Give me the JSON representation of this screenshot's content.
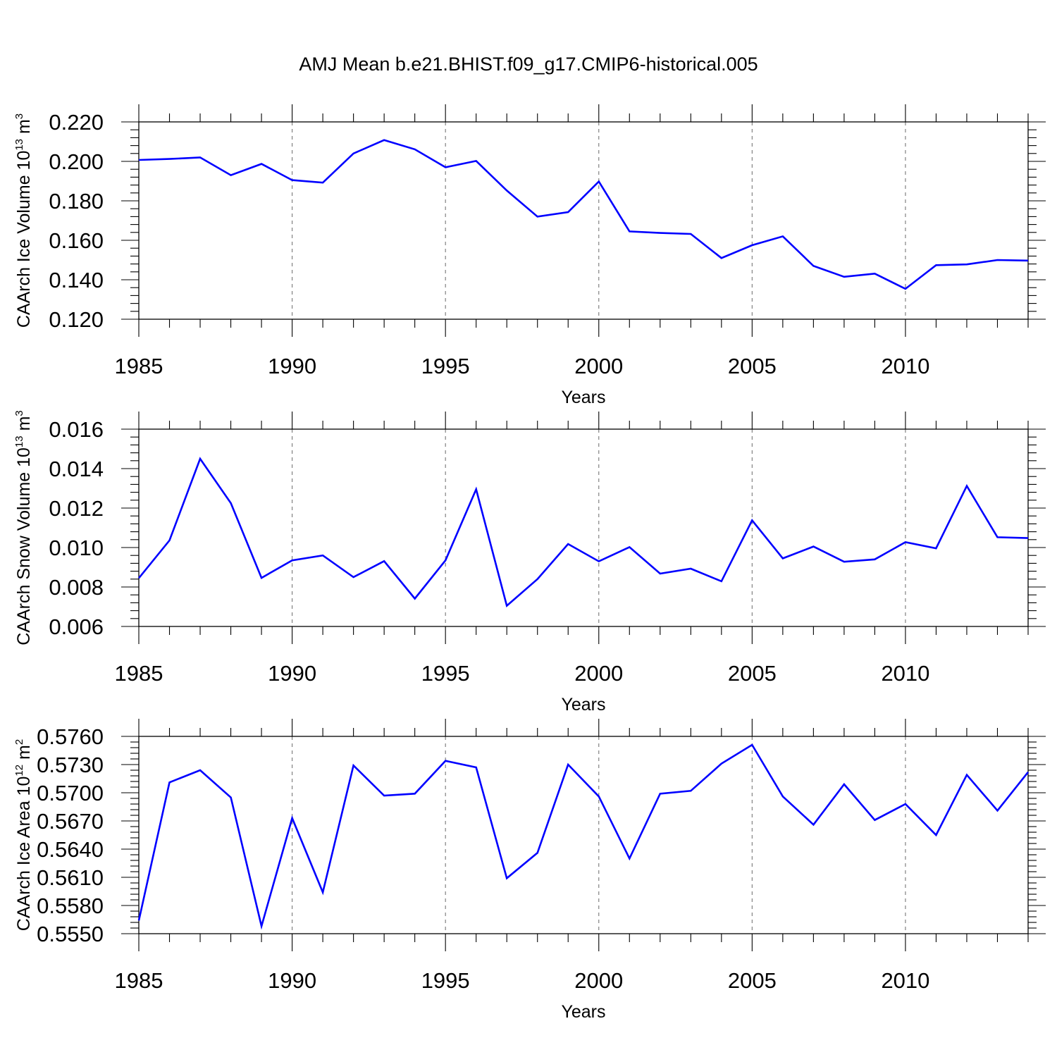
{
  "title": "AMJ Mean b.e21.BHIST.f09_g17.CMIP6-historical.005",
  "chart_data": [
    {
      "type": "line",
      "name": "ice-volume",
      "x": [
        1985,
        1986,
        1987,
        1988,
        1989,
        1990,
        1991,
        1992,
        1993,
        1994,
        1995,
        1996,
        1997,
        1998,
        1999,
        2000,
        2001,
        2002,
        2003,
        2004,
        2005,
        2006,
        2007,
        2008,
        2009,
        2010,
        2011,
        2012,
        2013,
        2014
      ],
      "series": [
        {
          "name": "CAArch Ice Volume",
          "color": "#0000ff",
          "values": [
            0.2007,
            0.2012,
            0.202,
            0.193,
            0.1987,
            0.1905,
            0.1892,
            0.204,
            0.2108,
            0.2061,
            0.197,
            0.2002,
            0.1852,
            0.172,
            0.1743,
            0.1898,
            0.1645,
            0.1637,
            0.1632,
            0.151,
            0.1575,
            0.162,
            0.147,
            0.1415,
            0.1431,
            0.1354,
            0.1474,
            0.1478,
            0.15,
            0.1497
          ]
        }
      ],
      "xlim": [
        1985,
        2014
      ],
      "ylim": [
        0.12,
        0.22
      ],
      "yticks": [
        "0.220",
        "0.200",
        "0.180",
        "0.160",
        "0.140",
        "0.120"
      ],
      "xticks": [
        "1985",
        "1990",
        "1995",
        "2000",
        "2005",
        "2010"
      ],
      "xlabel": "Years",
      "ylabel": {
        "text": "CAArch Ice Volume 10",
        "sup": "13",
        "unit": " m",
        "unit_sup": "3"
      },
      "grid": "x-major-dashed"
    },
    {
      "type": "line",
      "name": "snow-volume",
      "x": [
        1985,
        1986,
        1987,
        1988,
        1989,
        1990,
        1991,
        1992,
        1993,
        1994,
        1995,
        1996,
        1997,
        1998,
        1999,
        2000,
        2001,
        2002,
        2003,
        2004,
        2005,
        2006,
        2007,
        2008,
        2009,
        2010,
        2011,
        2012,
        2013,
        2014
      ],
      "series": [
        {
          "name": "CAArch Snow Volume",
          "color": "#0000ff",
          "values": [
            0.00845,
            0.01036,
            0.0145,
            0.01225,
            0.00846,
            0.00935,
            0.0096,
            0.0085,
            0.00931,
            0.00741,
            0.00935,
            0.01295,
            0.00705,
            0.0084,
            0.01018,
            0.0093,
            0.01002,
            0.00868,
            0.00893,
            0.00829,
            0.01138,
            0.00945,
            0.01005,
            0.00928,
            0.0094,
            0.01027,
            0.00996,
            0.01312,
            0.01052,
            0.01048
          ]
        }
      ],
      "xlim": [
        1985,
        2014
      ],
      "ylim": [
        0.006,
        0.016
      ],
      "yticks": [
        "0.016",
        "0.014",
        "0.012",
        "0.010",
        "0.008",
        "0.006"
      ],
      "xticks": [
        "1985",
        "1990",
        "1995",
        "2000",
        "2005",
        "2010"
      ],
      "xlabel": "Years",
      "ylabel": {
        "text": "CAArch Snow Volume 10",
        "sup": "13",
        "unit": " m",
        "unit_sup": "3"
      },
      "grid": "x-major-dashed"
    },
    {
      "type": "line",
      "name": "ice-area",
      "x": [
        1985,
        1986,
        1987,
        1988,
        1989,
        1990,
        1991,
        1992,
        1993,
        1994,
        1995,
        1996,
        1997,
        1998,
        1999,
        2000,
        2001,
        2002,
        2003,
        2004,
        2005,
        2006,
        2007,
        2008,
        2009,
        2010,
        2011,
        2012,
        2013,
        2014
      ],
      "series": [
        {
          "name": "CAArch Ice Area",
          "color": "#0000ff",
          "values": [
            0.5564,
            0.5711,
            0.5724,
            0.5695,
            0.5558,
            0.5673,
            0.5594,
            0.5729,
            0.5697,
            0.5699,
            0.5734,
            0.5727,
            0.5609,
            0.5636,
            0.573,
            0.5696,
            0.563,
            0.5699,
            0.5702,
            0.5731,
            0.5751,
            0.5696,
            0.5666,
            0.5709,
            0.5671,
            0.5688,
            0.5655,
            0.5719,
            0.5681,
            0.5722
          ]
        }
      ],
      "xlim": [
        1985,
        2014
      ],
      "ylim": [
        0.555,
        0.576
      ],
      "yticks": [
        "0.5760",
        "0.5730",
        "0.5700",
        "0.5670",
        "0.5640",
        "0.5610",
        "0.5580",
        "0.5550"
      ],
      "xticks": [
        "1985",
        "1990",
        "1995",
        "2000",
        "2005",
        "2010"
      ],
      "xlabel": "Years",
      "ylabel": {
        "text": "CAArch Ice Area 10",
        "sup": "12",
        "unit": " m",
        "unit_sup": "2"
      },
      "grid": "x-major-dashed"
    }
  ]
}
